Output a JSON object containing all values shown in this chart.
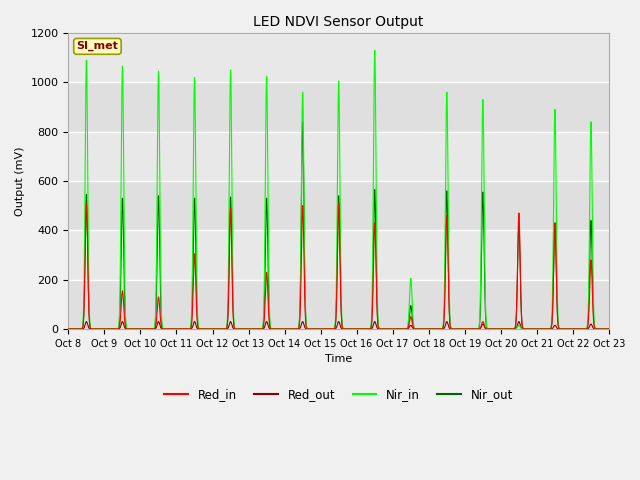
{
  "title": "LED NDVI Sensor Output",
  "xlabel": "Time",
  "ylabel": "Output (mV)",
  "ylim": [
    0,
    1200
  ],
  "xlim": [
    0,
    15
  ],
  "fig_bg": "#f0f0f0",
  "ax_bg": "#e8e8e8",
  "legend_label": "SI_met",
  "series": {
    "Red_in": {
      "color": "#ff0000",
      "lw": 0.8
    },
    "Red_out": {
      "color": "#8b0000",
      "lw": 0.8
    },
    "Nir_in": {
      "color": "#00ff00",
      "lw": 0.8
    },
    "Nir_out": {
      "color": "#006400",
      "lw": 0.8
    }
  },
  "xtick_labels": [
    "Oct 8",
    "Oct 9",
    "Oct 10",
    "Oct 11",
    "Oct 12",
    "Oct 13",
    "Oct 14",
    "Oct 15",
    "Oct 16",
    "Oct 17",
    "Oct 18",
    "Oct 19",
    "Oct 20",
    "Oct 21",
    "Oct 22",
    "Oct 23"
  ],
  "ytick_labels": [
    0,
    200,
    400,
    600,
    800,
    1000,
    1200
  ],
  "grid_color": "#ffffff",
  "peaks": {
    "nir_in": [
      1090,
      1065,
      1045,
      1020,
      1050,
      1025,
      960,
      1005,
      1130,
      205,
      960,
      930,
      15,
      890,
      840
    ],
    "nir_out": [
      545,
      530,
      540,
      530,
      535,
      530,
      840,
      540,
      565,
      95,
      560,
      555,
      420,
      430,
      440
    ],
    "red_in": [
      510,
      155,
      130,
      305,
      490,
      230,
      500,
      510,
      430,
      50,
      460,
      30,
      470,
      430,
      280
    ],
    "red_out": [
      30,
      30,
      30,
      30,
      30,
      30,
      30,
      30,
      30,
      15,
      30,
      20,
      30,
      15,
      20
    ]
  },
  "peak_offsets": [
    0.5,
    0.5,
    0.5,
    0.5,
    0.5,
    0.5,
    0.5,
    0.5,
    0.5,
    0.5,
    0.5,
    0.5,
    0.5,
    0.5,
    0.5
  ]
}
